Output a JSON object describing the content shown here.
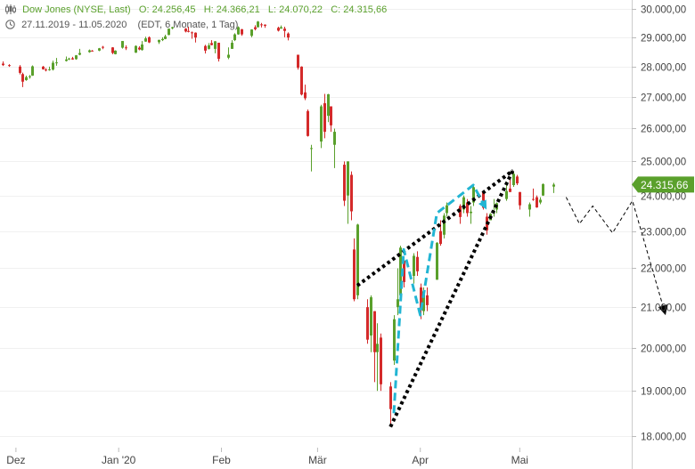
{
  "header": {
    "instrument": "Dow Jones (NYSE, Last)",
    "ohlc": {
      "open_label": "O:",
      "open": "24.256,45",
      "high_label": "H:",
      "high": "24.366,21",
      "low_label": "L:",
      "low": "24.070,22",
      "close_label": "C:",
      "close": "24.315,66"
    },
    "range": "27.11.2019 - 11.05.2020",
    "settings": "(EDT, 6 Monate, 1 Tag)"
  },
  "colors": {
    "up": "#5aa02c",
    "down": "#d42a2a",
    "last_price_badge": "#5aa02c",
    "wedge_lines": "#000000",
    "wave_path": "#22b5d3",
    "projection": "#000000"
  },
  "chart_data": {
    "type": "candlestick",
    "y_axis": {
      "position": "right",
      "range": [
        17800,
        30200
      ],
      "ticks": [
        18000,
        19000,
        20000,
        21000,
        22000,
        23000,
        24000,
        25000,
        26000,
        27000,
        28000,
        29000,
        30000
      ],
      "tick_labels": [
        "18.000,00",
        "19.000,00",
        "20.000,00",
        "21.000,00",
        "22.000,00",
        "23.000,00",
        "24.000,00",
        "25.000,00",
        "26.000,00",
        "27.000,00",
        "28.000,00",
        "29.000,00",
        "30.000,00"
      ]
    },
    "x_axis": {
      "labels": [
        {
          "label": "Dez",
          "date": "2019-12-01"
        },
        {
          "label": "Jan '20",
          "date": "2020-01-01"
        },
        {
          "label": "Feb",
          "date": "2020-02-01"
        },
        {
          "label": "Mär",
          "date": "2020-03-01"
        },
        {
          "label": "Apr",
          "date": "2020-04-01"
        },
        {
          "label": "Mai",
          "date": "2020-05-01"
        }
      ]
    },
    "last_price": {
      "value": 24315.66,
      "label": "24.315,66"
    },
    "candles": [
      {
        "date": "2019-11-27",
        "o": 28100,
        "h": 28175,
        "l": 28020,
        "c": 28050
      },
      {
        "date": "2019-11-29",
        "o": 28050,
        "h": 28080,
        "l": 27990,
        "c": 28020
      },
      {
        "date": "2019-12-02",
        "o": 28000,
        "h": 28050,
        "l": 27740,
        "c": 27790
      },
      {
        "date": "2019-12-03",
        "o": 27750,
        "h": 27800,
        "l": 27320,
        "c": 27500
      },
      {
        "date": "2019-12-04",
        "o": 27550,
        "h": 27700,
        "l": 27530,
        "c": 27650
      },
      {
        "date": "2019-12-05",
        "o": 27650,
        "h": 27720,
        "l": 27600,
        "c": 27680
      },
      {
        "date": "2019-12-06",
        "o": 27700,
        "h": 28040,
        "l": 27690,
        "c": 28010
      },
      {
        "date": "2019-12-09",
        "o": 28000,
        "h": 28020,
        "l": 27900,
        "c": 27910
      },
      {
        "date": "2019-12-10",
        "o": 27900,
        "h": 27950,
        "l": 27840,
        "c": 27880
      },
      {
        "date": "2019-12-11",
        "o": 27890,
        "h": 28000,
        "l": 27860,
        "c": 27910
      },
      {
        "date": "2019-12-12",
        "o": 27900,
        "h": 28200,
        "l": 27870,
        "c": 28130
      },
      {
        "date": "2019-12-13",
        "o": 28130,
        "h": 28290,
        "l": 28030,
        "c": 28140
      },
      {
        "date": "2019-12-16",
        "o": 28190,
        "h": 28340,
        "l": 28170,
        "c": 28240
      },
      {
        "date": "2019-12-17",
        "o": 28250,
        "h": 28300,
        "l": 28220,
        "c": 28270
      },
      {
        "date": "2019-12-18",
        "o": 28280,
        "h": 28330,
        "l": 28230,
        "c": 28240
      },
      {
        "date": "2019-12-19",
        "o": 28250,
        "h": 28390,
        "l": 28230,
        "c": 28380
      },
      {
        "date": "2019-12-20",
        "o": 28400,
        "h": 28600,
        "l": 28380,
        "c": 28460
      },
      {
        "date": "2019-12-23",
        "o": 28490,
        "h": 28580,
        "l": 28470,
        "c": 28550
      },
      {
        "date": "2019-12-24",
        "o": 28540,
        "h": 28560,
        "l": 28510,
        "c": 28520
      },
      {
        "date": "2019-12-26",
        "o": 28540,
        "h": 28630,
        "l": 28520,
        "c": 28620
      },
      {
        "date": "2019-12-27",
        "o": 28670,
        "h": 28700,
        "l": 28590,
        "c": 28640
      },
      {
        "date": "2019-12-30",
        "o": 28650,
        "h": 28660,
        "l": 28420,
        "c": 28460
      },
      {
        "date": "2019-12-31",
        "o": 28420,
        "h": 28550,
        "l": 28410,
        "c": 28540
      },
      {
        "date": "2020-01-02",
        "o": 28640,
        "h": 28870,
        "l": 28610,
        "c": 28870
      },
      {
        "date": "2020-01-03",
        "o": 28650,
        "h": 28720,
        "l": 28560,
        "c": 28630
      },
      {
        "date": "2020-01-06",
        "o": 28470,
        "h": 28720,
        "l": 28460,
        "c": 28700
      },
      {
        "date": "2020-01-07",
        "o": 28640,
        "h": 28690,
        "l": 28550,
        "c": 28580
      },
      {
        "date": "2020-01-08",
        "o": 28560,
        "h": 28870,
        "l": 28540,
        "c": 28750
      },
      {
        "date": "2020-01-09",
        "o": 28850,
        "h": 29020,
        "l": 28840,
        "c": 28960
      },
      {
        "date": "2020-01-10",
        "o": 29000,
        "h": 29030,
        "l": 28800,
        "c": 28820
      },
      {
        "date": "2020-01-13",
        "o": 28830,
        "h": 28910,
        "l": 28770,
        "c": 28910
      },
      {
        "date": "2020-01-14",
        "o": 28900,
        "h": 29000,
        "l": 28870,
        "c": 28940
      },
      {
        "date": "2020-01-15",
        "o": 28940,
        "h": 29090,
        "l": 28930,
        "c": 29030
      },
      {
        "date": "2020-01-16",
        "o": 29080,
        "h": 29300,
        "l": 29070,
        "c": 29300
      },
      {
        "date": "2020-01-17",
        "o": 29310,
        "h": 29370,
        "l": 29280,
        "c": 29350
      },
      {
        "date": "2020-01-21",
        "o": 29300,
        "h": 29320,
        "l": 29170,
        "c": 29200
      },
      {
        "date": "2020-01-22",
        "o": 29220,
        "h": 29370,
        "l": 29170,
        "c": 29190
      },
      {
        "date": "2020-01-23",
        "o": 29170,
        "h": 29200,
        "l": 28950,
        "c": 29160
      },
      {
        "date": "2020-01-24",
        "o": 29160,
        "h": 29170,
        "l": 28820,
        "c": 28990
      },
      {
        "date": "2020-01-27",
        "o": 28700,
        "h": 28740,
        "l": 28440,
        "c": 28540
      },
      {
        "date": "2020-01-28",
        "o": 28600,
        "h": 28800,
        "l": 28580,
        "c": 28720
      },
      {
        "date": "2020-01-29",
        "o": 28800,
        "h": 28900,
        "l": 28720,
        "c": 28730
      },
      {
        "date": "2020-01-30",
        "o": 28600,
        "h": 28870,
        "l": 28450,
        "c": 28860
      },
      {
        "date": "2020-01-31",
        "o": 28810,
        "h": 28810,
        "l": 28170,
        "c": 28260
      },
      {
        "date": "2020-02-03",
        "o": 28300,
        "h": 28650,
        "l": 28250,
        "c": 28400
      },
      {
        "date": "2020-02-04",
        "o": 28600,
        "h": 28900,
        "l": 28600,
        "c": 28810
      },
      {
        "date": "2020-02-05",
        "o": 28900,
        "h": 29140,
        "l": 28870,
        "c": 29100
      },
      {
        "date": "2020-02-06",
        "o": 29100,
        "h": 29380,
        "l": 29090,
        "c": 29350
      },
      {
        "date": "2020-02-07",
        "o": 29280,
        "h": 29290,
        "l": 29050,
        "c": 29100
      },
      {
        "date": "2020-02-10",
        "o": 29050,
        "h": 29280,
        "l": 29000,
        "c": 29270
      },
      {
        "date": "2020-02-11",
        "o": 29350,
        "h": 29420,
        "l": 29240,
        "c": 29280
      },
      {
        "date": "2020-02-12",
        "o": 29350,
        "h": 29570,
        "l": 29340,
        "c": 29550
      },
      {
        "date": "2020-02-13",
        "o": 29450,
        "h": 29500,
        "l": 29340,
        "c": 29420
      },
      {
        "date": "2020-02-14",
        "o": 29440,
        "h": 29450,
        "l": 29330,
        "c": 29400
      },
      {
        "date": "2020-02-18",
        "o": 29330,
        "h": 29370,
        "l": 29200,
        "c": 29230
      },
      {
        "date": "2020-02-19",
        "o": 29300,
        "h": 29410,
        "l": 29300,
        "c": 29350
      },
      {
        "date": "2020-02-20",
        "o": 29300,
        "h": 29370,
        "l": 29000,
        "c": 29220
      },
      {
        "date": "2020-02-21",
        "o": 29130,
        "h": 29170,
        "l": 28890,
        "c": 28990
      },
      {
        "date": "2020-02-24",
        "o": 28400,
        "h": 28400,
        "l": 27900,
        "c": 27960
      },
      {
        "date": "2020-02-25",
        "o": 28000,
        "h": 28010,
        "l": 27050,
        "c": 27080
      },
      {
        "date": "2020-02-26",
        "o": 27150,
        "h": 27400,
        "l": 26900,
        "c": 26960
      },
      {
        "date": "2020-02-27",
        "o": 26550,
        "h": 26600,
        "l": 25750,
        "c": 25770
      },
      {
        "date": "2020-02-28",
        "o": 25400,
        "h": 25500,
        "l": 24700,
        "c": 25400
      },
      {
        "date": "2020-03-02",
        "o": 25600,
        "h": 26750,
        "l": 25400,
        "c": 26700
      },
      {
        "date": "2020-03-03",
        "o": 26800,
        "h": 27100,
        "l": 25700,
        "c": 25900
      },
      {
        "date": "2020-03-04",
        "o": 26400,
        "h": 27100,
        "l": 26200,
        "c": 27090
      },
      {
        "date": "2020-03-05",
        "o": 26700,
        "h": 26700,
        "l": 25900,
        "c": 26100
      },
      {
        "date": "2020-03-06",
        "o": 25500,
        "h": 26000,
        "l": 24800,
        "c": 25900
      },
      {
        "date": "2020-03-09",
        "o": 24900,
        "h": 25000,
        "l": 23700,
        "c": 23850
      },
      {
        "date": "2020-03-10",
        "o": 24000,
        "h": 25000,
        "l": 23200,
        "c": 25000
      },
      {
        "date": "2020-03-11",
        "o": 24600,
        "h": 24700,
        "l": 23300,
        "c": 23550
      },
      {
        "date": "2020-03-12",
        "o": 22500,
        "h": 22800,
        "l": 21150,
        "c": 21200
      },
      {
        "date": "2020-03-13",
        "o": 21300,
        "h": 23200,
        "l": 21200,
        "c": 23180
      },
      {
        "date": "2020-03-16",
        "o": 21000,
        "h": 21200,
        "l": 20100,
        "c": 20200
      },
      {
        "date": "2020-03-17",
        "o": 20300,
        "h": 21300,
        "l": 19900,
        "c": 21250
      },
      {
        "date": "2020-03-18",
        "o": 20900,
        "h": 20900,
        "l": 19200,
        "c": 19900
      },
      {
        "date": "2020-03-19",
        "o": 19900,
        "h": 20600,
        "l": 19000,
        "c": 20100
      },
      {
        "date": "2020-03-20",
        "o": 20250,
        "h": 20350,
        "l": 19000,
        "c": 19150
      },
      {
        "date": "2020-03-23",
        "o": 19100,
        "h": 19200,
        "l": 18200,
        "c": 18590
      },
      {
        "date": "2020-03-24",
        "o": 19700,
        "h": 20800,
        "l": 19600,
        "c": 20700
      },
      {
        "date": "2020-03-25",
        "o": 21000,
        "h": 22000,
        "l": 20800,
        "c": 21200
      },
      {
        "date": "2020-03-26",
        "o": 21300,
        "h": 22600,
        "l": 21250,
        "c": 22550
      },
      {
        "date": "2020-03-27",
        "o": 22200,
        "h": 22300,
        "l": 21500,
        "c": 21640
      },
      {
        "date": "2020-03-30",
        "o": 21800,
        "h": 22400,
        "l": 21600,
        "c": 22330
      },
      {
        "date": "2020-03-31",
        "o": 22300,
        "h": 22450,
        "l": 21800,
        "c": 21920
      },
      {
        "date": "2020-04-01",
        "o": 21500,
        "h": 21600,
        "l": 20700,
        "c": 20940
      },
      {
        "date": "2020-04-02",
        "o": 20900,
        "h": 21500,
        "l": 20800,
        "c": 21400
      },
      {
        "date": "2020-04-03",
        "o": 21300,
        "h": 21500,
        "l": 20900,
        "c": 21050
      },
      {
        "date": "2020-04-06",
        "o": 21700,
        "h": 22700,
        "l": 21700,
        "c": 22680
      },
      {
        "date": "2020-04-07",
        "o": 23000,
        "h": 23300,
        "l": 22600,
        "c": 22650
      },
      {
        "date": "2020-04-08",
        "o": 22900,
        "h": 23500,
        "l": 22800,
        "c": 23430
      },
      {
        "date": "2020-04-09",
        "o": 23500,
        "h": 23800,
        "l": 23400,
        "c": 23720
      },
      {
        "date": "2020-04-13",
        "o": 23700,
        "h": 23750,
        "l": 23200,
        "c": 23390
      },
      {
        "date": "2020-04-14",
        "o": 23600,
        "h": 24000,
        "l": 23500,
        "c": 23950
      },
      {
        "date": "2020-04-15",
        "o": 23800,
        "h": 23900,
        "l": 23400,
        "c": 23500
      },
      {
        "date": "2020-04-16",
        "o": 23500,
        "h": 23700,
        "l": 23200,
        "c": 23540
      },
      {
        "date": "2020-04-17",
        "o": 23800,
        "h": 24300,
        "l": 23700,
        "c": 24240
      },
      {
        "date": "2020-04-20",
        "o": 24100,
        "h": 24150,
        "l": 23600,
        "c": 23650
      },
      {
        "date": "2020-04-21",
        "o": 23400,
        "h": 23500,
        "l": 22900,
        "c": 23020
      },
      {
        "date": "2020-04-22",
        "o": 23300,
        "h": 23500,
        "l": 23300,
        "c": 23480
      },
      {
        "date": "2020-04-23",
        "o": 23500,
        "h": 23900,
        "l": 23400,
        "c": 23520
      },
      {
        "date": "2020-04-24",
        "o": 23600,
        "h": 23800,
        "l": 23500,
        "c": 23780
      },
      {
        "date": "2020-04-27",
        "o": 23900,
        "h": 24400,
        "l": 23850,
        "c": 24130
      },
      {
        "date": "2020-04-28",
        "o": 24200,
        "h": 24500,
        "l": 24100,
        "c": 24100
      },
      {
        "date": "2020-04-29",
        "o": 24300,
        "h": 24700,
        "l": 24250,
        "c": 24630
      },
      {
        "date": "2020-04-30",
        "o": 24550,
        "h": 24600,
        "l": 24300,
        "c": 24350
      },
      {
        "date": "2020-05-01",
        "o": 24100,
        "h": 24100,
        "l": 23600,
        "c": 23720
      },
      {
        "date": "2020-05-04",
        "o": 23600,
        "h": 23800,
        "l": 23400,
        "c": 23750
      },
      {
        "date": "2020-05-05",
        "o": 23900,
        "h": 24200,
        "l": 23850,
        "c": 23880
      },
      {
        "date": "2020-05-06",
        "o": 23950,
        "h": 24000,
        "l": 23650,
        "c": 23660
      },
      {
        "date": "2020-05-07",
        "o": 23800,
        "h": 23950,
        "l": 23750,
        "c": 23880
      },
      {
        "date": "2020-05-08",
        "o": 24000,
        "h": 24350,
        "l": 23990,
        "c": 24330
      },
      {
        "date": "2020-05-11",
        "o": 24256.45,
        "h": 24366.21,
        "l": 24070.22,
        "c": 24315.66
      }
    ],
    "annotations": {
      "wedge_lower": [
        {
          "date": "2020-03-23",
          "y": 18200
        },
        {
          "date": "2020-04-29",
          "y": 24750
        }
      ],
      "wedge_upper": [
        {
          "date": "2020-03-13",
          "y": 21550
        },
        {
          "date": "2020-04-29",
          "y": 24730
        }
      ],
      "wave_path": [
        {
          "date": "2020-03-24",
          "y": 18500
        },
        {
          "date": "2020-03-27",
          "y": 22500
        },
        {
          "date": "2020-04-01",
          "y": 20800
        },
        {
          "date": "2020-04-06",
          "y": 23500
        },
        {
          "date": "2020-04-17",
          "y": 24300
        },
        {
          "date": "2020-04-21",
          "y": 23600
        }
      ],
      "projection_path": [
        {
          "date": "2020-05-15",
          "y": 23950
        },
        {
          "date": "2020-05-19",
          "y": 23200
        },
        {
          "date": "2020-05-23",
          "y": 23700
        },
        {
          "date": "2020-05-29",
          "y": 22950
        },
        {
          "date": "2020-06-04",
          "y": 23850
        },
        {
          "date": "2020-06-14",
          "y": 20800
        }
      ]
    }
  }
}
